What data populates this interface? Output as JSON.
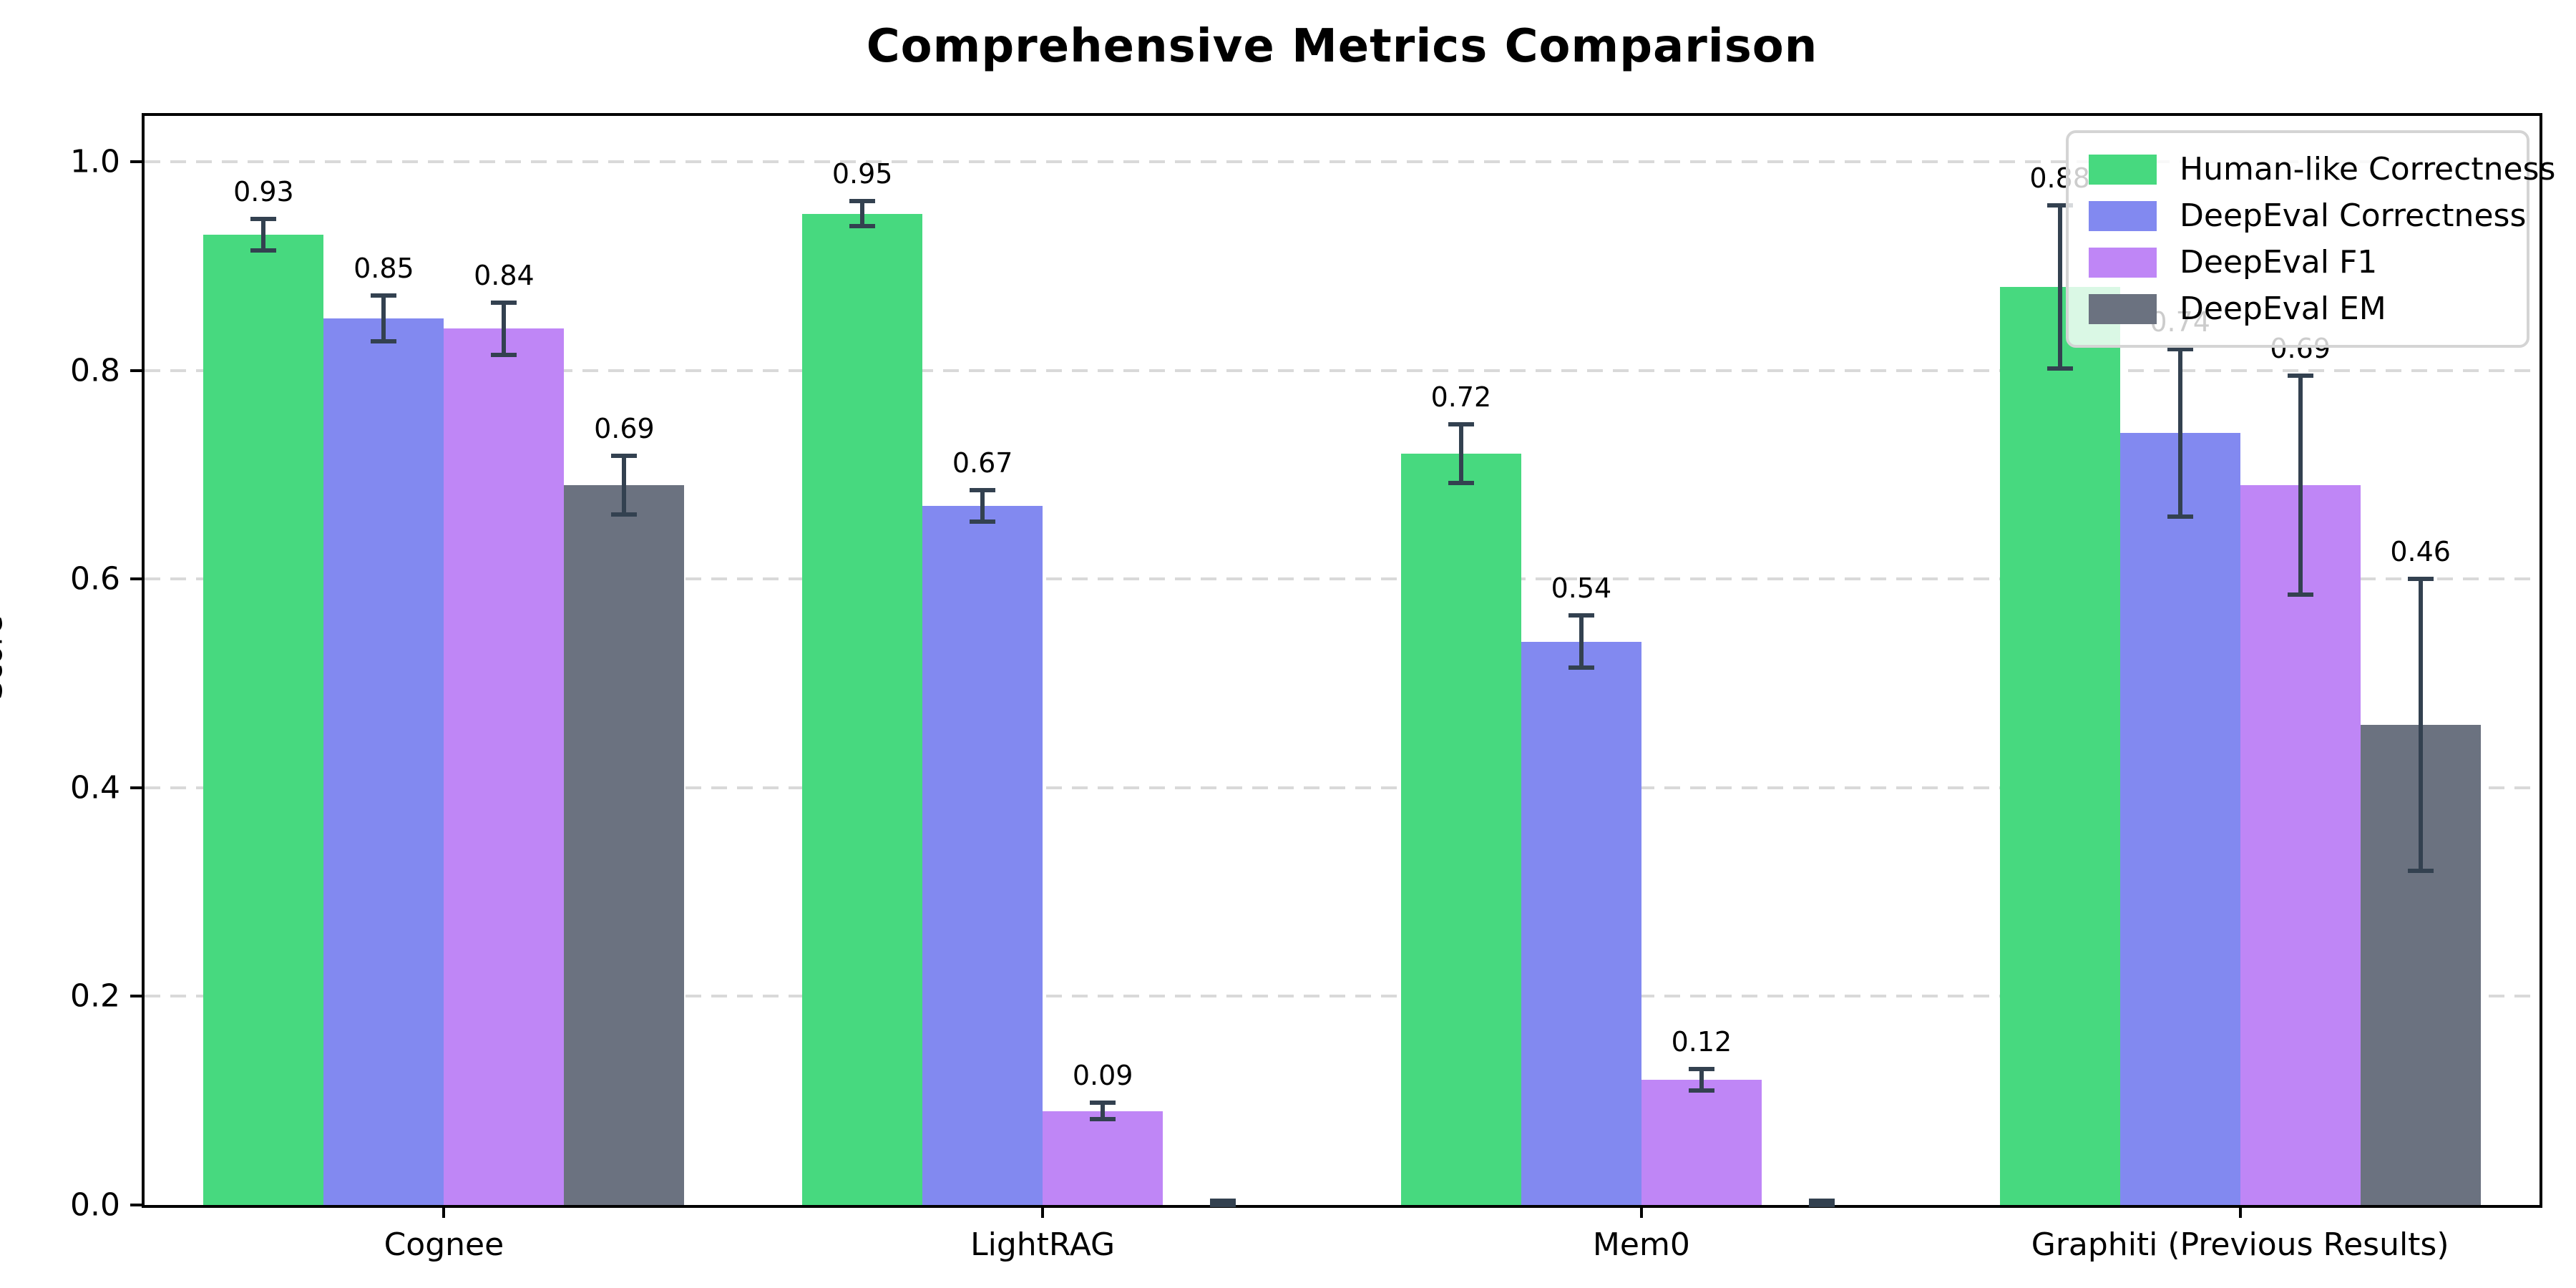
{
  "chart_data": {
    "type": "bar",
    "title": "Comprehensive Metrics Comparison",
    "xlabel": "",
    "ylabel": "Score",
    "categories": [
      "Cognee",
      "LightRAG",
      "Mem0",
      "Graphiti (Previous Results)"
    ],
    "series": [
      {
        "name": "Human-like Correctness",
        "color": "#47d97f",
        "values": [
          0.93,
          0.95,
          0.72,
          0.88
        ],
        "errors": [
          0.015,
          0.012,
          0.028,
          0.078
        ],
        "bar_labels": [
          "0.93",
          "0.95",
          "0.72",
          "0.88"
        ]
      },
      {
        "name": "DeepEval Correctness",
        "color": "#8289f0",
        "values": [
          0.85,
          0.67,
          0.54,
          0.74
        ],
        "errors": [
          0.022,
          0.015,
          0.025,
          0.08
        ],
        "bar_labels": [
          "0.85",
          "0.67",
          "0.54",
          "0.74"
        ]
      },
      {
        "name": "DeepEval F1",
        "color": "#bf86f6",
        "values": [
          0.84,
          0.09,
          0.12,
          0.69
        ],
        "errors": [
          0.025,
          0.008,
          0.01,
          0.105
        ],
        "bar_labels": [
          "0.84",
          "0.09",
          "0.12",
          "0.69"
        ]
      },
      {
        "name": "DeepEval EM",
        "color": "#6b7280",
        "values": [
          0.69,
          0.0,
          0.0,
          0.46
        ],
        "errors": [
          0.028,
          0.004,
          0.004,
          0.14
        ],
        "bar_labels": [
          "0.69",
          "",
          "",
          "0.46"
        ]
      }
    ],
    "y_ticks": [
      {
        "label": "0.0",
        "value": 0.0
      },
      {
        "label": "0.2",
        "value": 0.2
      },
      {
        "label": "0.4",
        "value": 0.4
      },
      {
        "label": "0.6",
        "value": 0.6
      },
      {
        "label": "0.8",
        "value": 0.8
      },
      {
        "label": "1.0",
        "value": 1.0
      }
    ],
    "ylim": [
      0,
      1.05
    ],
    "grid": "horizontal-dashed",
    "grid_color": "#d9d9d9",
    "error_bar_color": "#334150",
    "legend_position": "upper right"
  }
}
